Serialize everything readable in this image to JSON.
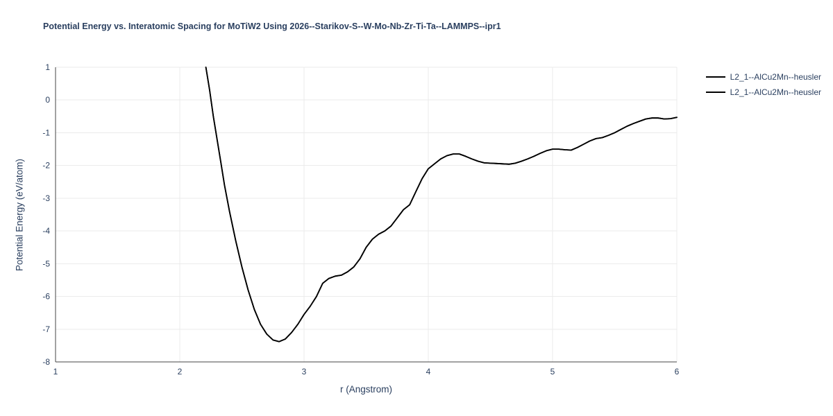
{
  "chart_data": {
    "type": "line",
    "title": "Potential Energy vs. Interatomic Spacing for MoTiW2 Using 2026--Starikov-S--W-Mo-Nb-Zr-Ti-Ta--LAMMPS--ipr1",
    "xlabel": "r (Angstrom)",
    "ylabel": "Potential Energy (eV/atom)",
    "xlim": [
      1,
      6
    ],
    "ylim": [
      -8,
      1
    ],
    "xticks": [
      1,
      2,
      3,
      4,
      5,
      6
    ],
    "yticks": [
      1,
      0,
      -1,
      -2,
      -3,
      -4,
      -5,
      -6,
      -7,
      -8
    ],
    "grid": true,
    "legend_position": "top-right-outside",
    "colors": {
      "line": "#000000",
      "grid": "#ebebeb",
      "axis": "#444444",
      "text": "#2a3f5f",
      "background": "#ffffff"
    },
    "series": [
      {
        "name": "L2_1--AlCu2Mn--heusler",
        "x": [
          2.21,
          2.24,
          2.27,
          2.3,
          2.33,
          2.36,
          2.4,
          2.45,
          2.5,
          2.55,
          2.6,
          2.65,
          2.7,
          2.75,
          2.8,
          2.85,
          2.9,
          2.95,
          3.0,
          3.05,
          3.1,
          3.15,
          3.2,
          3.25,
          3.3,
          3.35,
          3.4,
          3.45,
          3.5,
          3.55,
          3.6,
          3.65,
          3.7,
          3.75,
          3.8,
          3.85,
          3.9,
          3.95,
          4.0,
          4.05,
          4.1,
          4.15,
          4.2,
          4.25,
          4.3,
          4.35,
          4.4,
          4.45,
          4.5,
          4.55,
          4.6,
          4.65,
          4.7,
          4.75,
          4.8,
          4.85,
          4.9,
          4.95,
          5.0,
          5.05,
          5.1,
          5.15,
          5.2,
          5.25,
          5.3,
          5.35,
          5.4,
          5.45,
          5.5,
          5.55,
          5.6,
          5.65,
          5.7,
          5.75,
          5.8,
          5.85,
          5.9,
          5.95,
          6.0
        ],
        "y": [
          1.0,
          0.3,
          -0.5,
          -1.2,
          -1.9,
          -2.6,
          -3.4,
          -4.3,
          -5.1,
          -5.8,
          -6.4,
          -6.85,
          -7.15,
          -7.33,
          -7.38,
          -7.3,
          -7.1,
          -6.85,
          -6.55,
          -6.3,
          -6.0,
          -5.6,
          -5.45,
          -5.38,
          -5.35,
          -5.25,
          -5.1,
          -4.85,
          -4.5,
          -4.25,
          -4.1,
          -4.0,
          -3.85,
          -3.6,
          -3.35,
          -3.2,
          -2.8,
          -2.4,
          -2.1,
          -1.95,
          -1.8,
          -1.7,
          -1.65,
          -1.65,
          -1.72,
          -1.8,
          -1.87,
          -1.92,
          -1.93,
          -1.94,
          -1.95,
          -1.96,
          -1.93,
          -1.87,
          -1.8,
          -1.72,
          -1.63,
          -1.55,
          -1.5,
          -1.5,
          -1.52,
          -1.53,
          -1.45,
          -1.35,
          -1.25,
          -1.18,
          -1.15,
          -1.08,
          -1.0,
          -0.9,
          -0.8,
          -0.72,
          -0.65,
          -0.58,
          -0.55,
          -0.55,
          -0.58,
          -0.57,
          -0.53
        ]
      },
      {
        "name": "L2_1--AlCu2Mn--heusler",
        "x": [
          2.21,
          2.24,
          2.27,
          2.3,
          2.33,
          2.36,
          2.4,
          2.45,
          2.5,
          2.55,
          2.6,
          2.65,
          2.7,
          2.75,
          2.8,
          2.85,
          2.9,
          2.95,
          3.0,
          3.05,
          3.1,
          3.15,
          3.2,
          3.25,
          3.3,
          3.35,
          3.4,
          3.45,
          3.5,
          3.55,
          3.6,
          3.65,
          3.7,
          3.75,
          3.8,
          3.85,
          3.9,
          3.95,
          4.0,
          4.05,
          4.1,
          4.15,
          4.2,
          4.25,
          4.3,
          4.35,
          4.4,
          4.45,
          4.5,
          4.55,
          4.6,
          4.65,
          4.7,
          4.75,
          4.8,
          4.85,
          4.9,
          4.95,
          5.0,
          5.05,
          5.1,
          5.15,
          5.2,
          5.25,
          5.3,
          5.35,
          5.4,
          5.45,
          5.5,
          5.55,
          5.6,
          5.65,
          5.7,
          5.75,
          5.8,
          5.85,
          5.9,
          5.95,
          6.0
        ],
        "y": [
          1.0,
          0.3,
          -0.5,
          -1.2,
          -1.9,
          -2.6,
          -3.4,
          -4.3,
          -5.1,
          -5.8,
          -6.4,
          -6.85,
          -7.15,
          -7.33,
          -7.38,
          -7.3,
          -7.1,
          -6.85,
          -6.55,
          -6.3,
          -6.0,
          -5.6,
          -5.45,
          -5.38,
          -5.35,
          -5.25,
          -5.1,
          -4.85,
          -4.5,
          -4.25,
          -4.1,
          -4.0,
          -3.85,
          -3.6,
          -3.35,
          -3.2,
          -2.8,
          -2.4,
          -2.1,
          -1.95,
          -1.8,
          -1.7,
          -1.65,
          -1.65,
          -1.72,
          -1.8,
          -1.87,
          -1.92,
          -1.93,
          -1.94,
          -1.95,
          -1.96,
          -1.93,
          -1.87,
          -1.8,
          -1.72,
          -1.63,
          -1.55,
          -1.5,
          -1.5,
          -1.52,
          -1.53,
          -1.45,
          -1.35,
          -1.25,
          -1.18,
          -1.15,
          -1.08,
          -1.0,
          -0.9,
          -0.8,
          -0.72,
          -0.65,
          -0.58,
          -0.55,
          -0.55,
          -0.58,
          -0.57,
          -0.53
        ]
      }
    ]
  }
}
